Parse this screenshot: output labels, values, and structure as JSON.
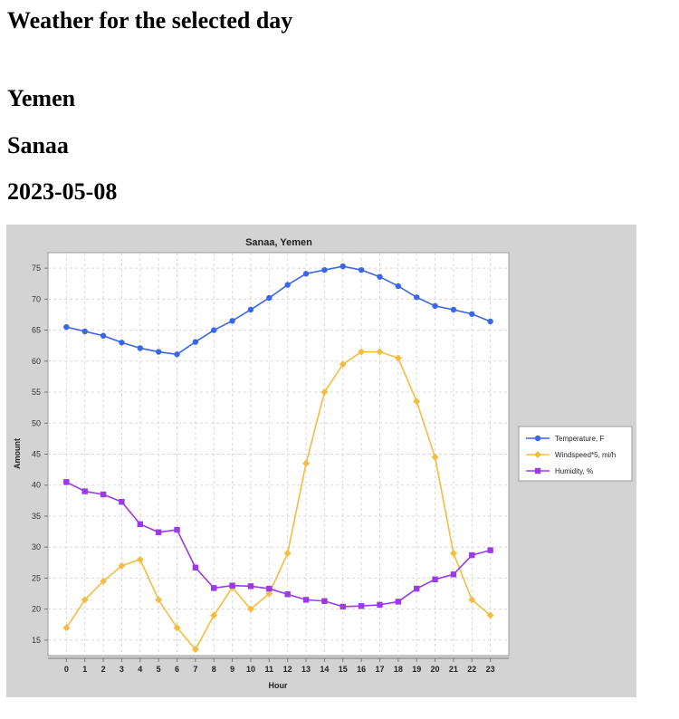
{
  "page": {
    "title": "Weather for the selected day",
    "country": "Yemen",
    "city": "Sanaa",
    "date": "2023-05-08"
  },
  "colors": {
    "temperature": "#3a66e8",
    "windspeed": "#f5bc42",
    "humidity": "#9a3ae8",
    "panel_bg": "#d3d3d3",
    "plot_bg": "#ffffff",
    "grid": "#d8d8d8"
  },
  "chart_data": {
    "type": "line",
    "title": "Sanaa, Yemen",
    "xlabel": "Hour",
    "ylabel": "Amount",
    "x": [
      0,
      1,
      2,
      3,
      4,
      5,
      6,
      7,
      8,
      9,
      10,
      11,
      12,
      13,
      14,
      15,
      16,
      17,
      18,
      19,
      20,
      21,
      22,
      23
    ],
    "xlim": [
      -1,
      24
    ],
    "ylim": [
      12.5,
      77.5
    ],
    "yticks": [
      15,
      20,
      25,
      30,
      35,
      40,
      45,
      50,
      55,
      60,
      65,
      70,
      75
    ],
    "grid": true,
    "legend_position": "right",
    "series": [
      {
        "name": "Temperature, F",
        "marker": "circle",
        "values": [
          65.5,
          64.8,
          64.1,
          63.0,
          62.1,
          61.5,
          61.1,
          63.1,
          65.0,
          66.5,
          68.3,
          70.2,
          72.3,
          74.1,
          74.7,
          75.3,
          74.7,
          73.6,
          72.1,
          70.3,
          68.9,
          68.3,
          67.6,
          66.4
        ]
      },
      {
        "name": "Windspeed*5, mi/h",
        "marker": "diamond",
        "values": [
          17.0,
          21.5,
          24.5,
          27.0,
          28.0,
          21.5,
          17.0,
          13.5,
          19.0,
          23.5,
          20.0,
          22.5,
          29.0,
          43.5,
          55.0,
          59.5,
          61.5,
          61.5,
          60.5,
          53.5,
          44.5,
          29.0,
          21.5,
          19.0
        ]
      },
      {
        "name": "Humidity, %",
        "marker": "square",
        "values": [
          40.5,
          39.0,
          38.5,
          37.3,
          33.7,
          32.4,
          32.8,
          26.7,
          23.4,
          23.8,
          23.7,
          23.3,
          22.4,
          21.5,
          21.3,
          20.4,
          20.5,
          20.7,
          21.2,
          23.3,
          24.8,
          25.6,
          28.7,
          29.5
        ]
      }
    ]
  }
}
